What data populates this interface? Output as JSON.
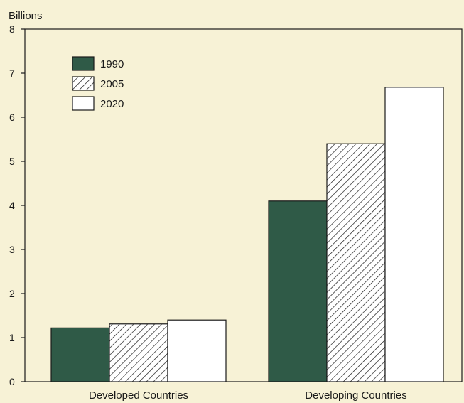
{
  "chart_data": {
    "type": "bar",
    "ylabel": "Billions",
    "xlabel": "",
    "title": "",
    "ylim": [
      0,
      8
    ],
    "yticks": [
      "0",
      "1",
      "2",
      "3",
      "4",
      "5",
      "6",
      "7",
      "8"
    ],
    "categories": [
      "Developed Countries",
      "Developing Countries"
    ],
    "series": [
      {
        "name": "1990",
        "values": [
          1.22,
          4.1
        ],
        "fill": "solid",
        "color": "#2f5a47"
      },
      {
        "name": "2005",
        "values": [
          1.31,
          5.4
        ],
        "fill": "hatch",
        "color": "#ffffff"
      },
      {
        "name": "2020",
        "values": [
          1.4,
          6.68
        ],
        "fill": "white",
        "color": "#ffffff"
      }
    ],
    "grid": false,
    "legend_position": "top-left"
  }
}
